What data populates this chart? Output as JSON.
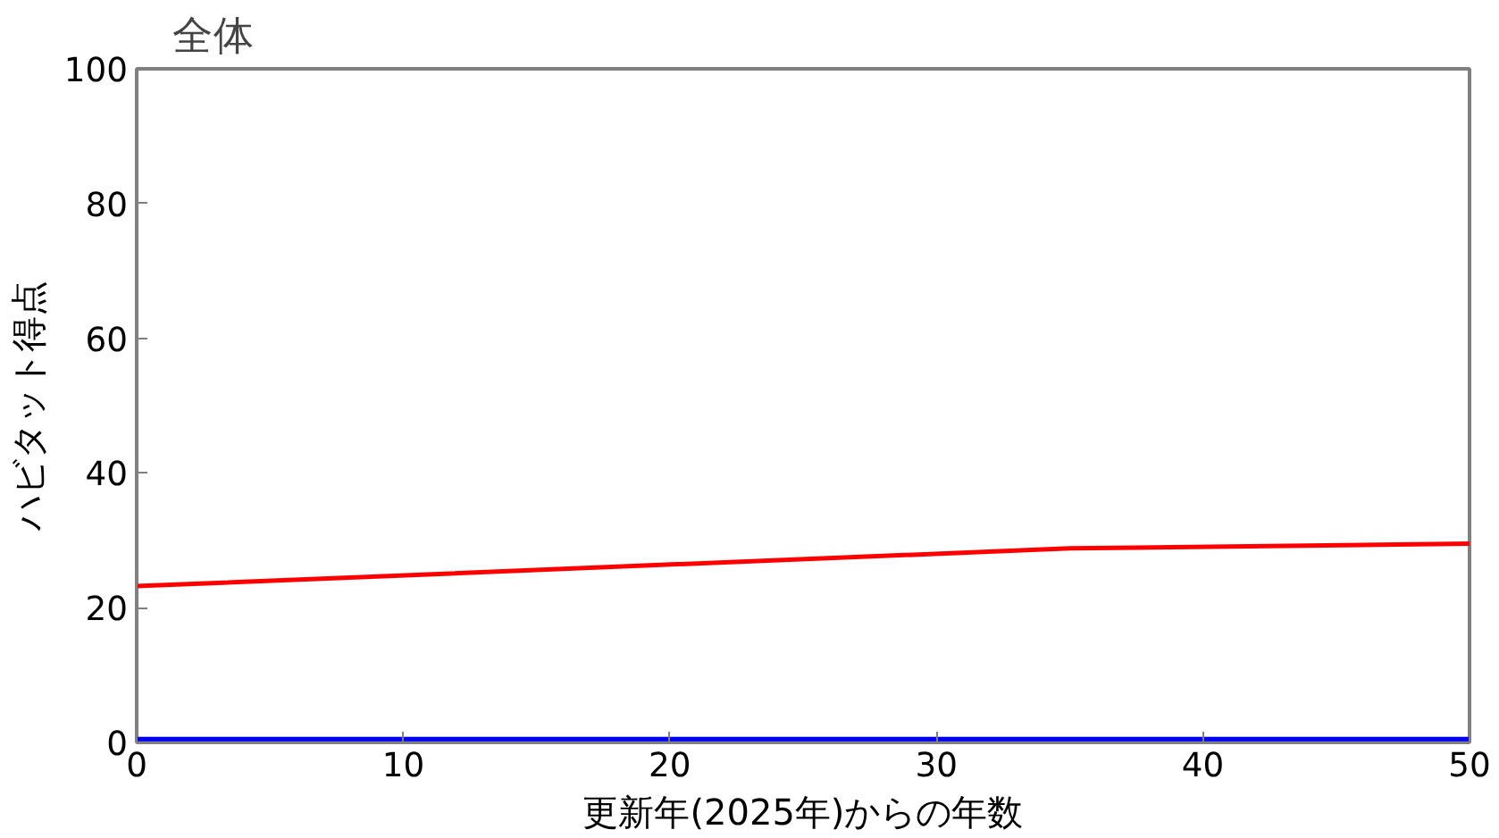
{
  "chart_data": {
    "type": "line",
    "title": "全体",
    "xlabel": "更新年(2025年)からの年数",
    "ylabel": "ハビタット得点",
    "xlim": [
      0,
      50
    ],
    "xticks": [
      0,
      10,
      20,
      30,
      40,
      50
    ],
    "ylim": [
      0,
      100
    ],
    "yticks": [
      0,
      20,
      40,
      60,
      80,
      100
    ],
    "grid": false,
    "marker": "none",
    "line_style": "solid",
    "series": [
      {
        "color": "#ff0000",
        "x": [
          0,
          35,
          50
        ],
        "values": [
          23.2,
          28.8,
          29.5
        ]
      },
      {
        "color": "#0000ff",
        "x": [
          0,
          50
        ],
        "values": [
          0.5,
          0.5
        ]
      }
    ]
  }
}
